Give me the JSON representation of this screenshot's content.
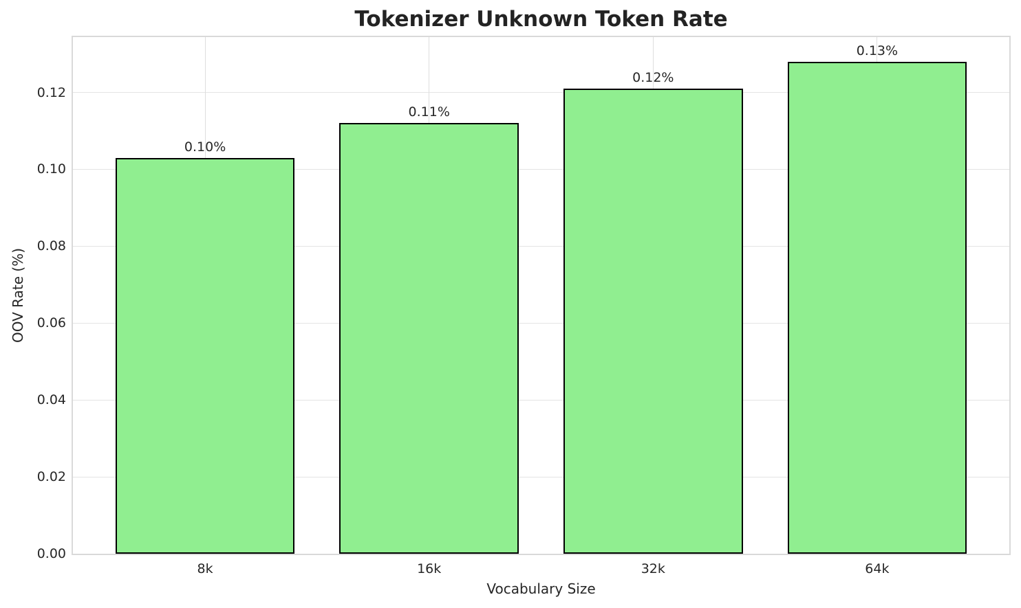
{
  "chart_data": {
    "type": "bar",
    "title": "Tokenizer Unknown Token Rate",
    "xlabel": "Vocabulary Size",
    "ylabel": "OOV Rate (%)",
    "categories": [
      "8k",
      "16k",
      "32k",
      "64k"
    ],
    "values": [
      0.103,
      0.112,
      0.121,
      0.128
    ],
    "bar_labels": [
      "0.10%",
      "0.11%",
      "0.12%",
      "0.13%"
    ],
    "yticks": [
      0,
      0.02,
      0.04,
      0.06,
      0.08,
      0.1,
      0.12
    ],
    "ytick_labels": [
      "0.00",
      "0.02",
      "0.04",
      "0.06",
      "0.08",
      "0.10",
      "0.12"
    ],
    "ylim": [
      0,
      0.1344
    ],
    "xlim": [
      -0.59,
      3.59
    ],
    "bar_width": 0.8,
    "grid": true,
    "legend": null,
    "colors": {
      "bar_fill": "#90EE90",
      "bar_edge": "#000000",
      "grid": "#e4e4e4",
      "spine": "#d9d9d9",
      "text": "#262626",
      "background": "#ffffff"
    }
  }
}
